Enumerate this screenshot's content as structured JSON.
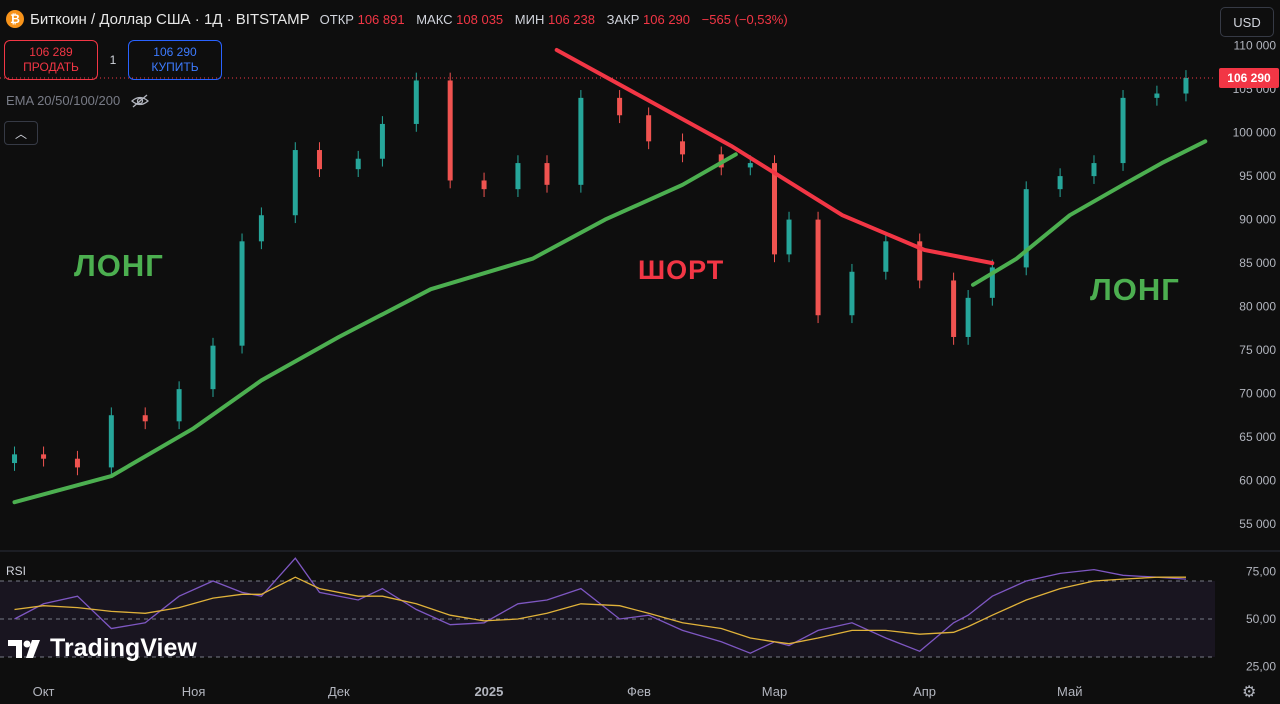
{
  "header": {
    "symbol": "Биткоин / Доллар США · 1Д · BITSTAMP",
    "open_label": "ОТКР",
    "open_value": "106 891",
    "high_label": "МАКС",
    "high_value": "108 035",
    "low_label": "МИН",
    "low_value": "106 238",
    "close_label": "ЗАКР",
    "close_value": "106 290",
    "change": "−565 (−0,53%)"
  },
  "trade": {
    "sell_price": "106 289",
    "sell_label": "ПРОДАТЬ",
    "quantity": "1",
    "buy_price": "106 290",
    "buy_label": "КУПИТЬ"
  },
  "indicator_label": "EMA 20/50/100/200",
  "currency": "USD",
  "rsi_label": "RSI",
  "branding": "TradingView",
  "annotations": {
    "long_left": "ЛОНГ",
    "short": "ШОРТ",
    "long_right": "ЛОНГ"
  },
  "colors": {
    "background": "#0e0e0e",
    "up": "#26a69a",
    "down": "#ef5350",
    "ema": "#4caf50",
    "trend": "#f23645",
    "rsi": "#7e57c2",
    "rsi_ma": "#e0b23a"
  },
  "chart_data": [
    {
      "type": "candlestick",
      "title": "Биткоин / Доллар США · 1Д · BITSTAMP",
      "x_ticks": [
        "Окт",
        "Ноя",
        "Дек",
        "2025",
        "Фев",
        "Мар",
        "Апр",
        "Май"
      ],
      "y_ticks": [
        55000,
        60000,
        65000,
        70000,
        75000,
        80000,
        85000,
        90000,
        95000,
        100000,
        105000,
        110000
      ],
      "ylim": [
        52000,
        111000
      ],
      "last_price": 106290,
      "last_price_label": "106 290",
      "x": [
        "2024-09-25",
        "2024-10-01",
        "2024-10-08",
        "2024-10-15",
        "2024-10-22",
        "2024-10-29",
        "2024-11-05",
        "2024-11-11",
        "2024-11-15",
        "2024-11-22",
        "2024-11-27",
        "2024-12-05",
        "2024-12-10",
        "2024-12-17",
        "2024-12-24",
        "2024-12-31",
        "2025-01-07",
        "2025-01-13",
        "2025-01-20",
        "2025-01-28",
        "2025-02-03",
        "2025-02-10",
        "2025-02-18",
        "2025-02-24",
        "2025-03-01",
        "2025-03-04",
        "2025-03-10",
        "2025-03-17",
        "2025-03-24",
        "2025-03-31",
        "2025-04-07",
        "2025-04-10",
        "2025-04-15",
        "2025-04-22",
        "2025-04-29",
        "2025-05-06",
        "2025-05-12",
        "2025-05-19",
        "2025-05-25"
      ],
      "close": [
        63000,
        62500,
        61500,
        67500,
        66800,
        70500,
        75500,
        87500,
        90500,
        98000,
        95800,
        97000,
        101000,
        106000,
        94500,
        93500,
        96500,
        94000,
        104000,
        102000,
        99000,
        97500,
        96000,
        96500,
        86000,
        90000,
        79000,
        84000,
        87500,
        83000,
        76500,
        81000,
        84500,
        93500,
        95000,
        96500,
        104000,
        104500,
        106290
      ],
      "ema": [
        {
          "x": "2024-09-25",
          "y": 57500
        },
        {
          "x": "2024-10-15",
          "y": 60500
        },
        {
          "x": "2024-11-01",
          "y": 66000
        },
        {
          "x": "2024-11-15",
          "y": 71500
        },
        {
          "x": "2024-12-01",
          "y": 76500
        },
        {
          "x": "2024-12-20",
          "y": 82000
        },
        {
          "x": "2025-01-10",
          "y": 85500
        },
        {
          "x": "2025-01-25",
          "y": 90000
        },
        {
          "x": "2025-02-10",
          "y": 94000
        },
        {
          "x": "2025-02-21",
          "y": 97500
        }
      ],
      "ema_right": [
        {
          "x": "2025-04-11",
          "y": 82500
        },
        {
          "x": "2025-04-20",
          "y": 85500
        },
        {
          "x": "2025-05-01",
          "y": 90500
        },
        {
          "x": "2025-05-12",
          "y": 94000
        },
        {
          "x": "2025-05-20",
          "y": 96500
        },
        {
          "x": "2025-05-29",
          "y": 99000
        }
      ],
      "trendline": [
        {
          "x": "2025-01-15",
          "y": 109500
        },
        {
          "x": "2025-02-20",
          "y": 98500
        },
        {
          "x": "2025-03-15",
          "y": 90500
        },
        {
          "x": "2025-04-01",
          "y": 86500
        },
        {
          "x": "2025-04-15",
          "y": 85000
        }
      ]
    },
    {
      "type": "line",
      "title": "RSI",
      "y_ticks": [
        25,
        50,
        75
      ],
      "y_tick_labels": [
        "25,00",
        "50,00",
        "75,00"
      ],
      "ylim": [
        20,
        80
      ],
      "rsi": [
        50,
        58,
        62,
        45,
        48,
        62,
        70,
        64,
        62,
        82,
        64,
        60,
        66,
        55,
        47,
        48,
        58,
        60,
        66,
        50,
        52,
        44,
        38,
        32,
        38,
        36,
        44,
        48,
        40,
        33,
        48,
        52,
        62,
        70,
        74,
        76,
        73,
        72,
        71
      ],
      "rsi_ma": [
        55,
        57,
        56,
        54,
        53,
        56,
        61,
        63,
        63,
        72,
        66,
        62,
        62,
        58,
        52,
        49,
        50,
        53,
        58,
        57,
        53,
        48,
        45,
        40,
        38,
        37,
        40,
        44,
        44,
        42,
        43,
        46,
        52,
        60,
        66,
        70,
        71,
        72,
        72
      ]
    }
  ]
}
